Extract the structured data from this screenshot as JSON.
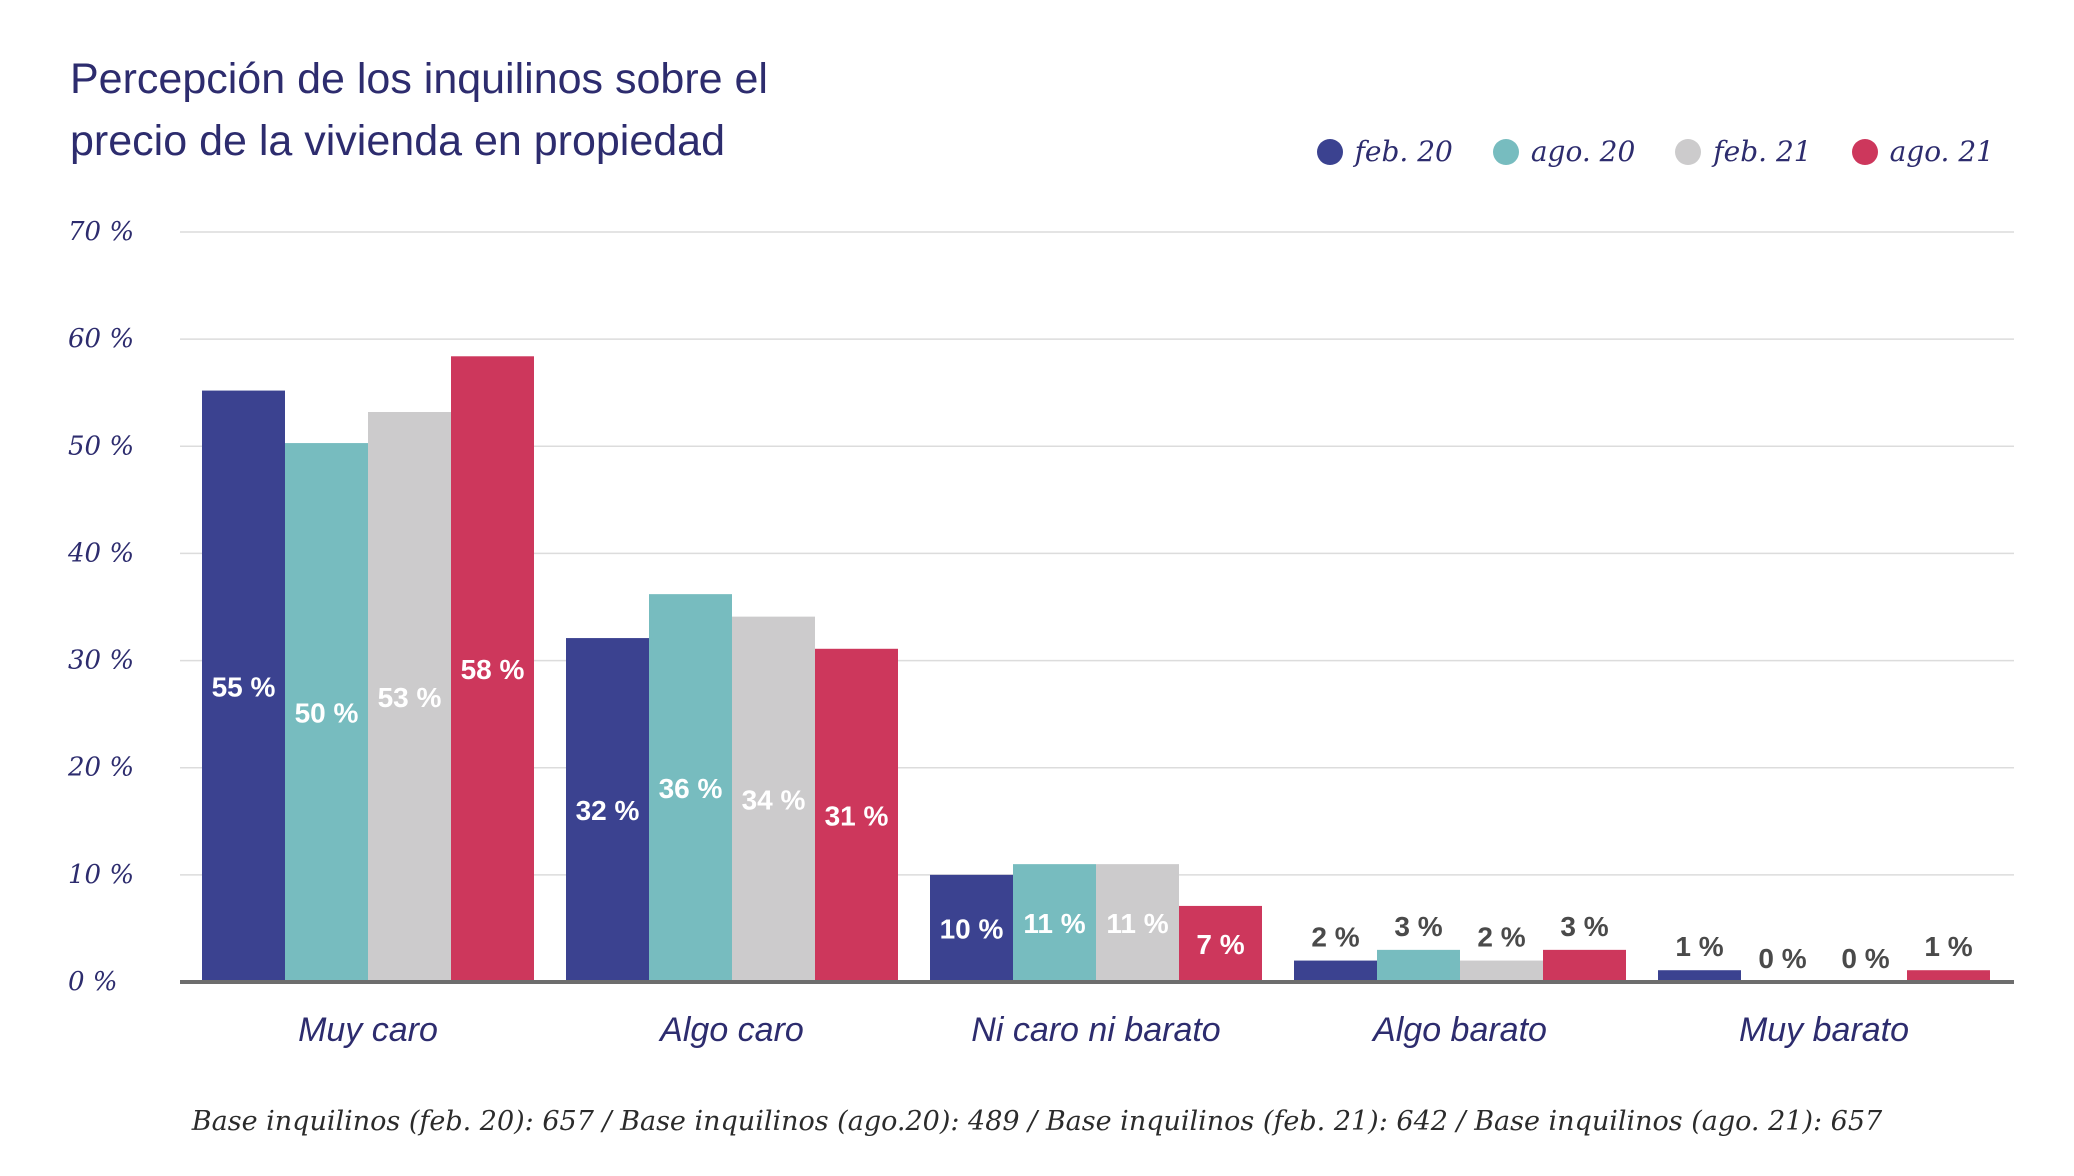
{
  "title_lines": [
    "Percepción de los inquilinos sobre el",
    "precio de la vivienda en propiedad"
  ],
  "footnote": "Base inquilinos (feb. 20): 657 / Base inquilinos (ago.20): 489 / Base inquilinos (feb. 21): 642 / Base inquilinos (ago. 21): 657",
  "chart_data": {
    "type": "bar",
    "title": "Percepción de los inquilinos sobre el precio de la vivienda en propiedad",
    "xlabel": "",
    "ylabel": "",
    "ylim": [
      0,
      70
    ],
    "yticks": [
      0,
      10,
      20,
      30,
      40,
      50,
      60,
      70
    ],
    "ytick_labels": [
      "0 %",
      "10 %",
      "20 %",
      "30 %",
      "40 %",
      "50 %",
      "60 %",
      "70 %"
    ],
    "grid": true,
    "legend_position": "top-right",
    "categories": [
      "Muy caro",
      "Algo caro",
      "Ni caro ni barato",
      "Algo barato",
      "Muy barato"
    ],
    "series": [
      {
        "name": "feb. 20",
        "color": "#3b4290",
        "label_color": "#ffffff",
        "values": [
          55.2,
          32.1,
          10.0,
          2.0,
          1.1
        ],
        "labels": [
          "55 %",
          "32 %",
          "10 %",
          "2 %",
          "1 %"
        ]
      },
      {
        "name": "ago. 20",
        "color": "#77bcbf",
        "label_color": "#ffffff",
        "values": [
          50.3,
          36.2,
          11.0,
          3.0,
          0.0
        ],
        "labels": [
          "50 %",
          "36 %",
          "11 %",
          "3 %",
          "0 %"
        ]
      },
      {
        "name": "feb. 21",
        "color": "#cccbcc",
        "label_color": "#ffffff",
        "values": [
          53.2,
          34.1,
          11.0,
          2.0,
          0.0
        ],
        "labels": [
          "53 %",
          "34 %",
          "11 %",
          "2 %",
          "0 %"
        ]
      },
      {
        "name": "ago. 21",
        "color": "#cd375c",
        "label_color": "#ffffff",
        "values": [
          58.4,
          31.1,
          7.1,
          3.0,
          1.1
        ],
        "labels": [
          "58 %",
          "31 %",
          "7 %",
          "3 %",
          "1 %"
        ]
      }
    ],
    "outside_label_color": "#4a4a4a"
  }
}
